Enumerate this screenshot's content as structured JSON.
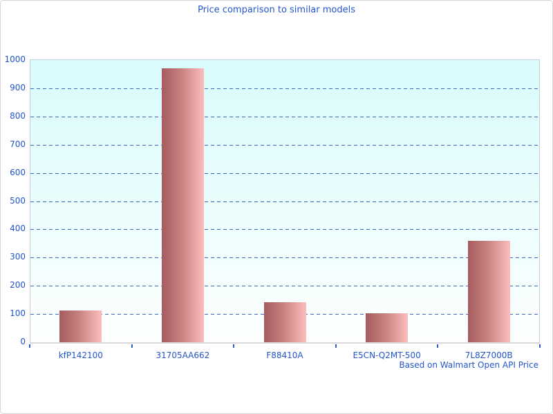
{
  "page": {
    "title": "Price comparison to similar models",
    "caption": "Based on Walmart Open API Price"
  },
  "colors": {
    "label_blue": "#2255cb",
    "gridline_blue": "#3a66c2",
    "bar_gradient_dark": "#a55c60",
    "bar_gradient_light": "#fcbdbd",
    "plot_bg_top": "#d9fbfc",
    "plot_bg_bottom": "#feffff",
    "plot_border": "#c9ced6"
  },
  "chart_data": {
    "type": "bar",
    "title": "Price comparison to similar models",
    "categories": [
      "kfP142100",
      "31705AA662",
      "F88410A",
      "E5CN-Q2MT-500",
      "7L8Z7000B"
    ],
    "values": [
      112,
      970,
      143,
      102,
      360
    ],
    "xlabel": "",
    "ylabel": "",
    "ylim": [
      0,
      1000
    ],
    "ytick_step": 100,
    "grid": true,
    "legend_position": "none",
    "annotation": "Based on Walmart Open API Price"
  }
}
